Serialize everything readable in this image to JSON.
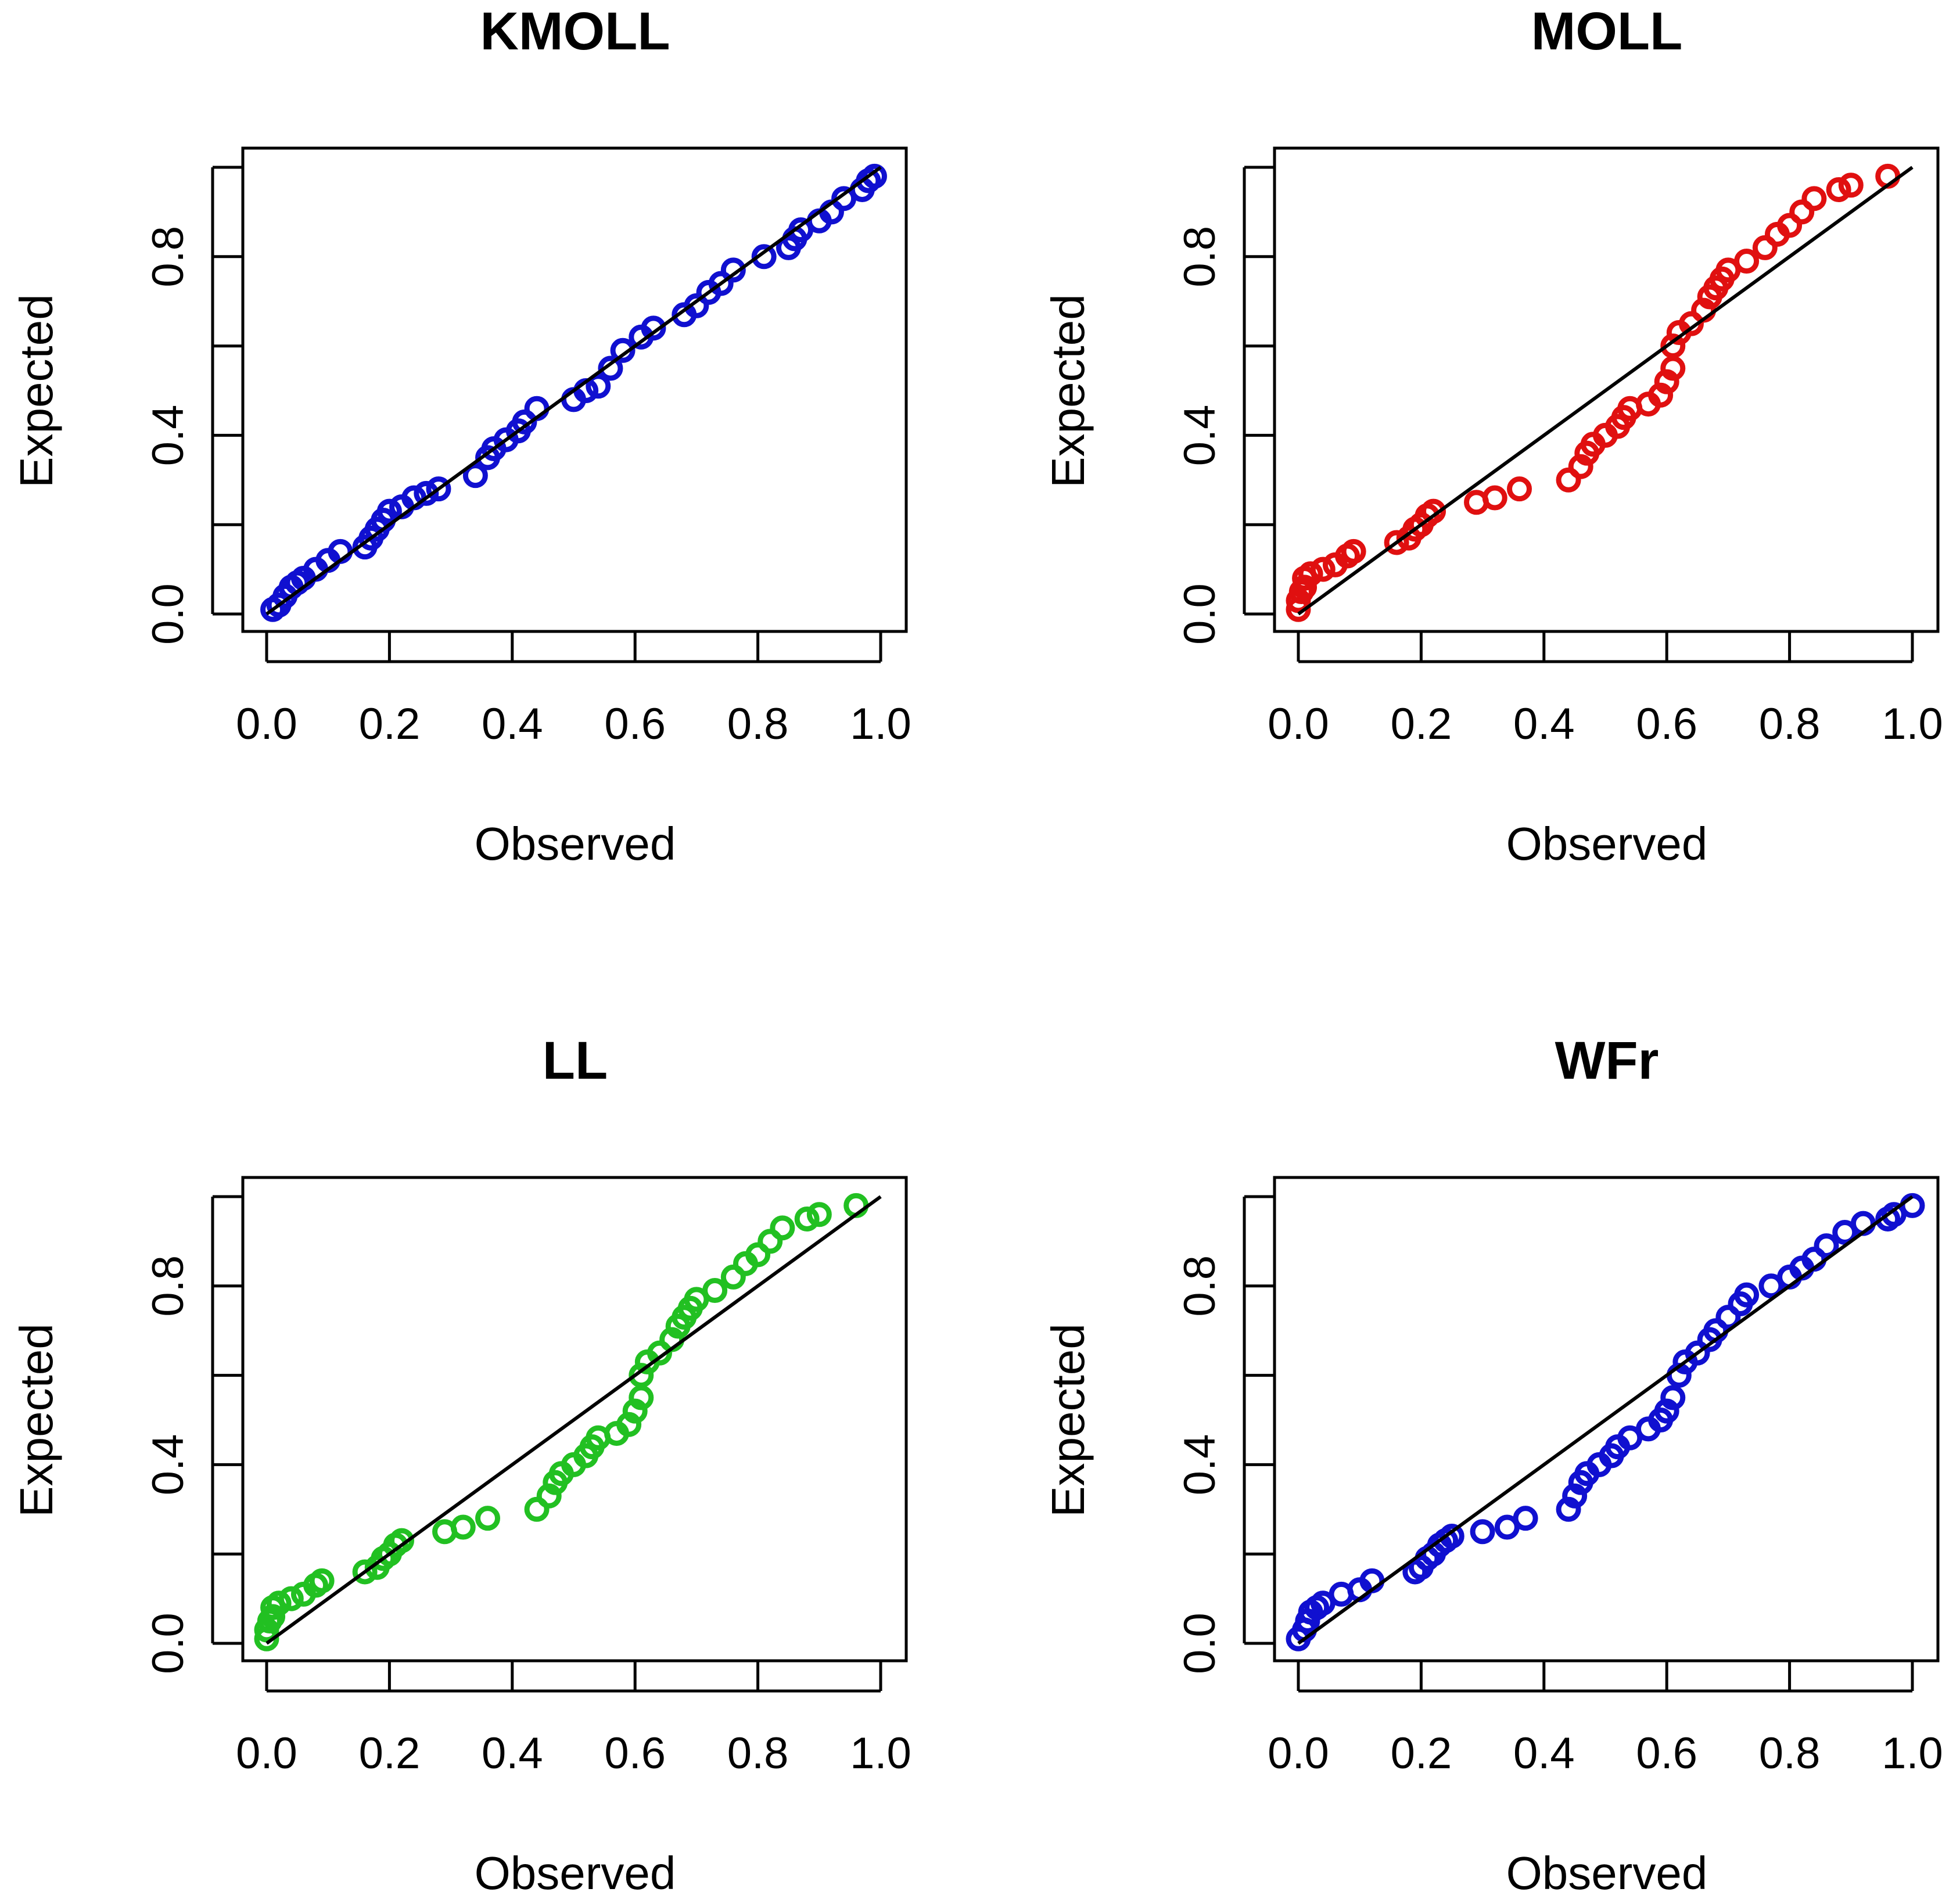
{
  "chart_data": [
    {
      "type": "scatter",
      "title": "KMOLL",
      "xlabel": "Observed",
      "ylabel": "Expected",
      "xlim": [
        0,
        1
      ],
      "ylim": [
        0,
        1
      ],
      "x_ticks": [
        "0.0",
        "0.2",
        "0.4",
        "0.6",
        "0.8",
        "1.0"
      ],
      "y_ticks": [
        "0.0",
        "0.4",
        "0.8"
      ],
      "color": "#1010d0",
      "reference_line": [
        [
          0,
          0
        ],
        [
          1,
          1
        ]
      ],
      "points": [
        [
          0.01,
          0.01
        ],
        [
          0.02,
          0.02
        ],
        [
          0.03,
          0.04
        ],
        [
          0.04,
          0.06
        ],
        [
          0.05,
          0.07
        ],
        [
          0.06,
          0.08
        ],
        [
          0.08,
          0.1
        ],
        [
          0.1,
          0.12
        ],
        [
          0.12,
          0.14
        ],
        [
          0.16,
          0.15
        ],
        [
          0.17,
          0.17
        ],
        [
          0.18,
          0.19
        ],
        [
          0.19,
          0.21
        ],
        [
          0.2,
          0.23
        ],
        [
          0.22,
          0.24
        ],
        [
          0.24,
          0.26
        ],
        [
          0.26,
          0.27
        ],
        [
          0.28,
          0.28
        ],
        [
          0.34,
          0.31
        ],
        [
          0.36,
          0.35
        ],
        [
          0.37,
          0.37
        ],
        [
          0.39,
          0.39
        ],
        [
          0.41,
          0.41
        ],
        [
          0.42,
          0.43
        ],
        [
          0.44,
          0.46
        ],
        [
          0.5,
          0.48
        ],
        [
          0.52,
          0.5
        ],
        [
          0.54,
          0.51
        ],
        [
          0.56,
          0.55
        ],
        [
          0.58,
          0.59
        ],
        [
          0.61,
          0.62
        ],
        [
          0.63,
          0.64
        ],
        [
          0.68,
          0.67
        ],
        [
          0.7,
          0.69
        ],
        [
          0.72,
          0.72
        ],
        [
          0.74,
          0.74
        ],
        [
          0.76,
          0.77
        ],
        [
          0.81,
          0.8
        ],
        [
          0.85,
          0.82
        ],
        [
          0.86,
          0.84
        ],
        [
          0.87,
          0.86
        ],
        [
          0.9,
          0.88
        ],
        [
          0.92,
          0.9
        ],
        [
          0.94,
          0.93
        ],
        [
          0.97,
          0.95
        ],
        [
          0.98,
          0.97
        ],
        [
          0.99,
          0.98
        ]
      ]
    },
    {
      "type": "scatter",
      "title": "MOLL",
      "xlabel": "Observed",
      "ylabel": "Expected",
      "xlim": [
        0,
        1
      ],
      "ylim": [
        0,
        1
      ],
      "x_ticks": [
        "0.0",
        "0.2",
        "0.4",
        "0.6",
        "0.8",
        "1.0"
      ],
      "y_ticks": [
        "0.0",
        "0.4",
        "0.8"
      ],
      "color": "#e01010",
      "reference_line": [
        [
          0,
          0
        ],
        [
          1,
          1
        ]
      ],
      "points": [
        [
          0.0,
          0.01
        ],
        [
          0.0,
          0.03
        ],
        [
          0.005,
          0.05
        ],
        [
          0.01,
          0.06
        ],
        [
          0.01,
          0.08
        ],
        [
          0.02,
          0.09
        ],
        [
          0.04,
          0.1
        ],
        [
          0.06,
          0.11
        ],
        [
          0.08,
          0.13
        ],
        [
          0.09,
          0.14
        ],
        [
          0.16,
          0.16
        ],
        [
          0.18,
          0.17
        ],
        [
          0.19,
          0.19
        ],
        [
          0.2,
          0.2
        ],
        [
          0.21,
          0.22
        ],
        [
          0.22,
          0.23
        ],
        [
          0.29,
          0.25
        ],
        [
          0.32,
          0.26
        ],
        [
          0.36,
          0.28
        ],
        [
          0.44,
          0.3
        ],
        [
          0.46,
          0.33
        ],
        [
          0.47,
          0.36
        ],
        [
          0.48,
          0.38
        ],
        [
          0.5,
          0.4
        ],
        [
          0.52,
          0.42
        ],
        [
          0.53,
          0.44
        ],
        [
          0.54,
          0.46
        ],
        [
          0.57,
          0.47
        ],
        [
          0.59,
          0.49
        ],
        [
          0.6,
          0.52
        ],
        [
          0.61,
          0.55
        ],
        [
          0.61,
          0.6
        ],
        [
          0.62,
          0.63
        ],
        [
          0.64,
          0.65
        ],
        [
          0.66,
          0.68
        ],
        [
          0.67,
          0.71
        ],
        [
          0.68,
          0.73
        ],
        [
          0.69,
          0.75
        ],
        [
          0.7,
          0.77
        ],
        [
          0.73,
          0.79
        ],
        [
          0.76,
          0.82
        ],
        [
          0.78,
          0.85
        ],
        [
          0.8,
          0.87
        ],
        [
          0.82,
          0.9
        ],
        [
          0.84,
          0.93
        ],
        [
          0.88,
          0.95
        ],
        [
          0.9,
          0.96
        ],
        [
          0.96,
          0.98
        ]
      ]
    },
    {
      "type": "scatter",
      "title": "LL",
      "xlabel": "Observed",
      "ylabel": "Expected",
      "xlim": [
        0,
        1
      ],
      "ylim": [
        0,
        1
      ],
      "x_ticks": [
        "0.0",
        "0.2",
        "0.4",
        "0.6",
        "0.8",
        "1.0"
      ],
      "y_ticks": [
        "0.0",
        "0.4",
        "0.8"
      ],
      "color": "#22c022",
      "reference_line": [
        [
          0,
          0
        ],
        [
          1,
          1
        ]
      ],
      "points": [
        [
          0.0,
          0.01
        ],
        [
          0.0,
          0.03
        ],
        [
          0.005,
          0.05
        ],
        [
          0.01,
          0.06
        ],
        [
          0.01,
          0.08
        ],
        [
          0.02,
          0.09
        ],
        [
          0.04,
          0.1
        ],
        [
          0.06,
          0.11
        ],
        [
          0.08,
          0.13
        ],
        [
          0.09,
          0.14
        ],
        [
          0.16,
          0.16
        ],
        [
          0.18,
          0.17
        ],
        [
          0.19,
          0.19
        ],
        [
          0.2,
          0.2
        ],
        [
          0.21,
          0.22
        ],
        [
          0.22,
          0.23
        ],
        [
          0.29,
          0.25
        ],
        [
          0.32,
          0.26
        ],
        [
          0.36,
          0.28
        ],
        [
          0.44,
          0.3
        ],
        [
          0.46,
          0.33
        ],
        [
          0.47,
          0.36
        ],
        [
          0.48,
          0.38
        ],
        [
          0.5,
          0.4
        ],
        [
          0.52,
          0.42
        ],
        [
          0.53,
          0.44
        ],
        [
          0.54,
          0.46
        ],
        [
          0.57,
          0.47
        ],
        [
          0.59,
          0.49
        ],
        [
          0.6,
          0.52
        ],
        [
          0.61,
          0.55
        ],
        [
          0.61,
          0.6
        ],
        [
          0.62,
          0.63
        ],
        [
          0.64,
          0.65
        ],
        [
          0.66,
          0.68
        ],
        [
          0.67,
          0.71
        ],
        [
          0.68,
          0.73
        ],
        [
          0.69,
          0.75
        ],
        [
          0.7,
          0.77
        ],
        [
          0.73,
          0.79
        ],
        [
          0.76,
          0.82
        ],
        [
          0.78,
          0.85
        ],
        [
          0.8,
          0.87
        ],
        [
          0.82,
          0.9
        ],
        [
          0.84,
          0.93
        ],
        [
          0.88,
          0.95
        ],
        [
          0.9,
          0.96
        ],
        [
          0.96,
          0.98
        ]
      ]
    },
    {
      "type": "scatter",
      "title": "WFr",
      "xlabel": "Observed",
      "ylabel": "Expected",
      "xlim": [
        0,
        1
      ],
      "ylim": [
        0,
        1
      ],
      "x_ticks": [
        "0.0",
        "0.2",
        "0.4",
        "0.6",
        "0.8",
        "1.0"
      ],
      "y_ticks": [
        "0.0",
        "0.4",
        "0.8"
      ],
      "color": "#1010d0",
      "reference_line": [
        [
          0,
          0
        ],
        [
          1,
          1
        ]
      ],
      "points": [
        [
          0.0,
          0.01
        ],
        [
          0.01,
          0.03
        ],
        [
          0.015,
          0.05
        ],
        [
          0.02,
          0.07
        ],
        [
          0.03,
          0.08
        ],
        [
          0.04,
          0.09
        ],
        [
          0.07,
          0.11
        ],
        [
          0.1,
          0.12
        ],
        [
          0.12,
          0.14
        ],
        [
          0.19,
          0.16
        ],
        [
          0.2,
          0.17
        ],
        [
          0.21,
          0.19
        ],
        [
          0.22,
          0.2
        ],
        [
          0.23,
          0.22
        ],
        [
          0.24,
          0.23
        ],
        [
          0.25,
          0.24
        ],
        [
          0.3,
          0.25
        ],
        [
          0.34,
          0.26
        ],
        [
          0.37,
          0.28
        ],
        [
          0.44,
          0.3
        ],
        [
          0.45,
          0.33
        ],
        [
          0.46,
          0.36
        ],
        [
          0.47,
          0.38
        ],
        [
          0.49,
          0.4
        ],
        [
          0.51,
          0.42
        ],
        [
          0.52,
          0.44
        ],
        [
          0.54,
          0.46
        ],
        [
          0.57,
          0.48
        ],
        [
          0.59,
          0.5
        ],
        [
          0.6,
          0.52
        ],
        [
          0.61,
          0.55
        ],
        [
          0.62,
          0.6
        ],
        [
          0.63,
          0.63
        ],
        [
          0.65,
          0.65
        ],
        [
          0.67,
          0.68
        ],
        [
          0.68,
          0.7
        ],
        [
          0.7,
          0.73
        ],
        [
          0.72,
          0.76
        ],
        [
          0.73,
          0.78
        ],
        [
          0.77,
          0.8
        ],
        [
          0.8,
          0.82
        ],
        [
          0.82,
          0.84
        ],
        [
          0.84,
          0.86
        ],
        [
          0.86,
          0.89
        ],
        [
          0.89,
          0.92
        ],
        [
          0.92,
          0.94
        ],
        [
          0.96,
          0.95
        ],
        [
          0.97,
          0.96
        ],
        [
          1.0,
          0.98
        ]
      ]
    }
  ]
}
